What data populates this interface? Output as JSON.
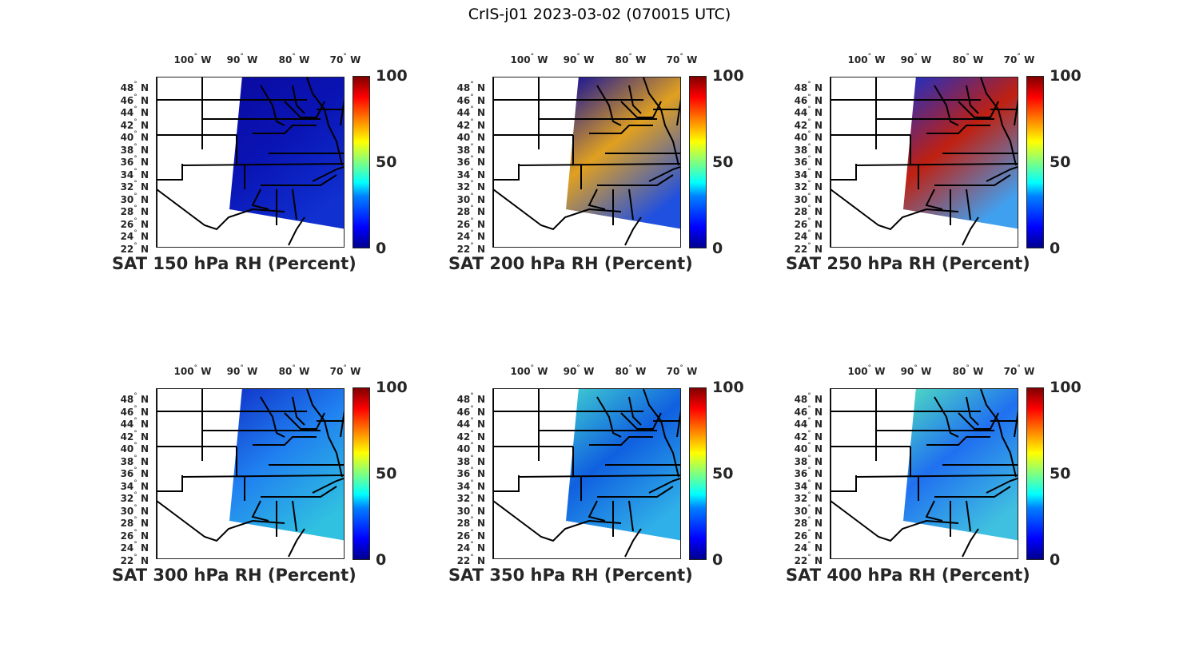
{
  "figure_title": "CrIS-j01 2023-03-02 (070015 UTC)",
  "lon_labels": [
    "100",
    "90",
    "80",
    "70"
  ],
  "lon_suffix": "W",
  "lat_labels": [
    "48",
    "46",
    "44",
    "42",
    "40",
    "38",
    "36",
    "34",
    "32",
    "30",
    "28",
    "26",
    "24",
    "22"
  ],
  "lat_suffix": "N",
  "colorbar": {
    "ticks": [
      "100",
      "50",
      "0"
    ],
    "range": [
      0,
      100
    ]
  },
  "panels": [
    {
      "title": "SAT 150 hPa RH (Percent)",
      "swath_colors": [
        "#0a0aa0",
        "#0a14b4",
        "#1030d0"
      ]
    },
    {
      "title": "SAT 200 hPa RH (Percent)",
      "swath_colors": [
        "#0a0aa0",
        "#e0a020",
        "#2050e0"
      ]
    },
    {
      "title": "SAT 250 hPa RH (Percent)",
      "swath_colors": [
        "#1530d0",
        "#c02010",
        "#40a0f0"
      ]
    },
    {
      "title": "SAT 300 hPa RH (Percent)",
      "swath_colors": [
        "#1030c8",
        "#2080f0",
        "#30c0e0"
      ]
    },
    {
      "title": "SAT 350 hPa RH (Percent)",
      "swath_colors": [
        "#40d0d0",
        "#1060e0",
        "#30b0e8"
      ]
    },
    {
      "title": "SAT 400 hPa RH (Percent)",
      "swath_colors": [
        "#50e0c0",
        "#2070f0",
        "#40c0e0"
      ]
    }
  ]
}
